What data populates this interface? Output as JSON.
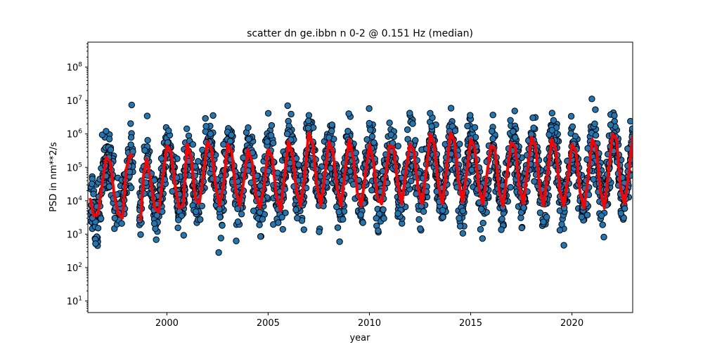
{
  "chart_data": {
    "type": "scatter",
    "title": "scatter dn ge.ibbn n 0-2 @ 0.151 Hz (median)",
    "xlabel": "year",
    "ylabel": "PSD in nm**2/s",
    "xlim": [
      1996.1,
      2023.0
    ],
    "ylim": [
      4.5,
      560000000
    ],
    "yscale": "log",
    "x_ticks": [
      2000,
      2005,
      2010,
      2015,
      2020
    ],
    "y_ticks": [
      {
        "value": 10,
        "label": "10^1"
      },
      {
        "value": 100,
        "label": "10^2"
      },
      {
        "value": 1000,
        "label": "10^3"
      },
      {
        "value": 10000,
        "label": "10^4"
      },
      {
        "value": 100000,
        "label": "10^5"
      },
      {
        "value": 1000000,
        "label": "10^6"
      },
      {
        "value": 10000000,
        "label": "10^7"
      },
      {
        "value": 100000000,
        "label": "10^8"
      }
    ],
    "grid": false,
    "legend": false,
    "scatter_style": {
      "fill": "#1f77b4",
      "edge": "#000000"
    },
    "median_style": {
      "color": "#ff0000"
    },
    "seasonal_pattern": {
      "description_basis": "annual cycle read from plot: winter peaks, summer troughs",
      "median_peak_month_fraction": 0.05,
      "gaps": [
        [
          1998.35,
          1998.65
        ]
      ]
    },
    "median_series": {
      "name": "",
      "x": [
        1996.2,
        1996.4,
        1996.6,
        1996.8,
        1997.0,
        1997.2,
        1997.4,
        1997.6,
        1997.8,
        1998.0,
        1998.2,
        1998.3,
        1998.7,
        1998.85,
        1999.0,
        1999.2,
        1999.4,
        1999.6,
        1999.8,
        2000.0,
        2000.2,
        2000.4,
        2000.6,
        2000.8,
        2001.0,
        2001.2,
        2001.4,
        2001.6,
        2001.8,
        2002.0,
        2002.2,
        2002.4,
        2002.6,
        2002.8,
        2003.0,
        2003.2,
        2003.4,
        2003.6,
        2003.8,
        2004.0,
        2004.2,
        2004.4,
        2004.6,
        2004.8,
        2005.0,
        2005.2,
        2005.4,
        2005.6,
        2005.8,
        2006.0,
        2006.2,
        2006.4,
        2006.6,
        2006.8,
        2007.0,
        2007.2,
        2007.4,
        2007.6,
        2007.8,
        2008.0,
        2008.2,
        2008.4,
        2008.6,
        2008.8,
        2009.0,
        2009.2,
        2009.4,
        2009.6,
        2009.8,
        2010.0,
        2010.2,
        2010.4,
        2010.6,
        2010.8,
        2011.0,
        2011.2,
        2011.4,
        2011.6,
        2011.8,
        2012.0,
        2012.2,
        2012.4,
        2012.6,
        2012.8,
        2013.0,
        2013.2,
        2013.4,
        2013.6,
        2013.8,
        2014.0,
        2014.2,
        2014.4,
        2014.6,
        2014.8,
        2015.0,
        2015.2,
        2015.4,
        2015.6,
        2015.8,
        2016.0,
        2016.2,
        2016.4,
        2016.6,
        2016.8,
        2017.0,
        2017.2,
        2017.4,
        2017.6,
        2017.8,
        2018.0,
        2018.2,
        2018.4,
        2018.6,
        2018.8,
        2019.0,
        2019.2,
        2019.4,
        2019.6,
        2019.8,
        2020.0,
        2020.2,
        2020.4,
        2020.6,
        2020.8,
        2021.0,
        2021.2,
        2021.4,
        2021.6,
        2021.8,
        2022.0,
        2022.2,
        2022.4,
        2022.6,
        2022.8,
        2023.0
      ],
      "y": [
        12000,
        3500,
        4000,
        30000,
        200000,
        150000,
        15000,
        4000,
        3000,
        90000,
        250000,
        200000,
        2500,
        60000,
        180000,
        40000,
        6000,
        4500,
        50000,
        450000,
        300000,
        30000,
        6000,
        7000,
        500000,
        200000,
        12000,
        8000,
        60000,
        600000,
        350000,
        30000,
        7000,
        30000,
        500000,
        300000,
        20000,
        7000,
        40000,
        350000,
        150000,
        15000,
        6000,
        30000,
        350000,
        200000,
        15000,
        5000,
        50000,
        600000,
        250000,
        20000,
        7000,
        50000,
        1100000,
        500000,
        30000,
        7000,
        60000,
        600000,
        300000,
        25000,
        7000,
        80000,
        700000,
        200000,
        18000,
        7000,
        60000,
        500000,
        150000,
        12000,
        8000,
        60000,
        450000,
        400000,
        30000,
        8000,
        80000,
        500000,
        300000,
        25000,
        8000,
        70000,
        1000000,
        500000,
        30000,
        8000,
        80000,
        1100000,
        600000,
        40000,
        9000,
        70000,
        700000,
        400000,
        25000,
        8000,
        60000,
        450000,
        350000,
        20000,
        7000,
        70000,
        550000,
        400000,
        25000,
        8000,
        80000,
        800000,
        450000,
        25000,
        7000,
        70000,
        700000,
        350000,
        20000,
        7000,
        50000,
        500000,
        300000,
        18000,
        6000,
        50000,
        700000,
        400000,
        20000,
        6000,
        70000,
        1000000,
        700000,
        25000,
        8000,
        60000,
        900000
      ]
    }
  }
}
